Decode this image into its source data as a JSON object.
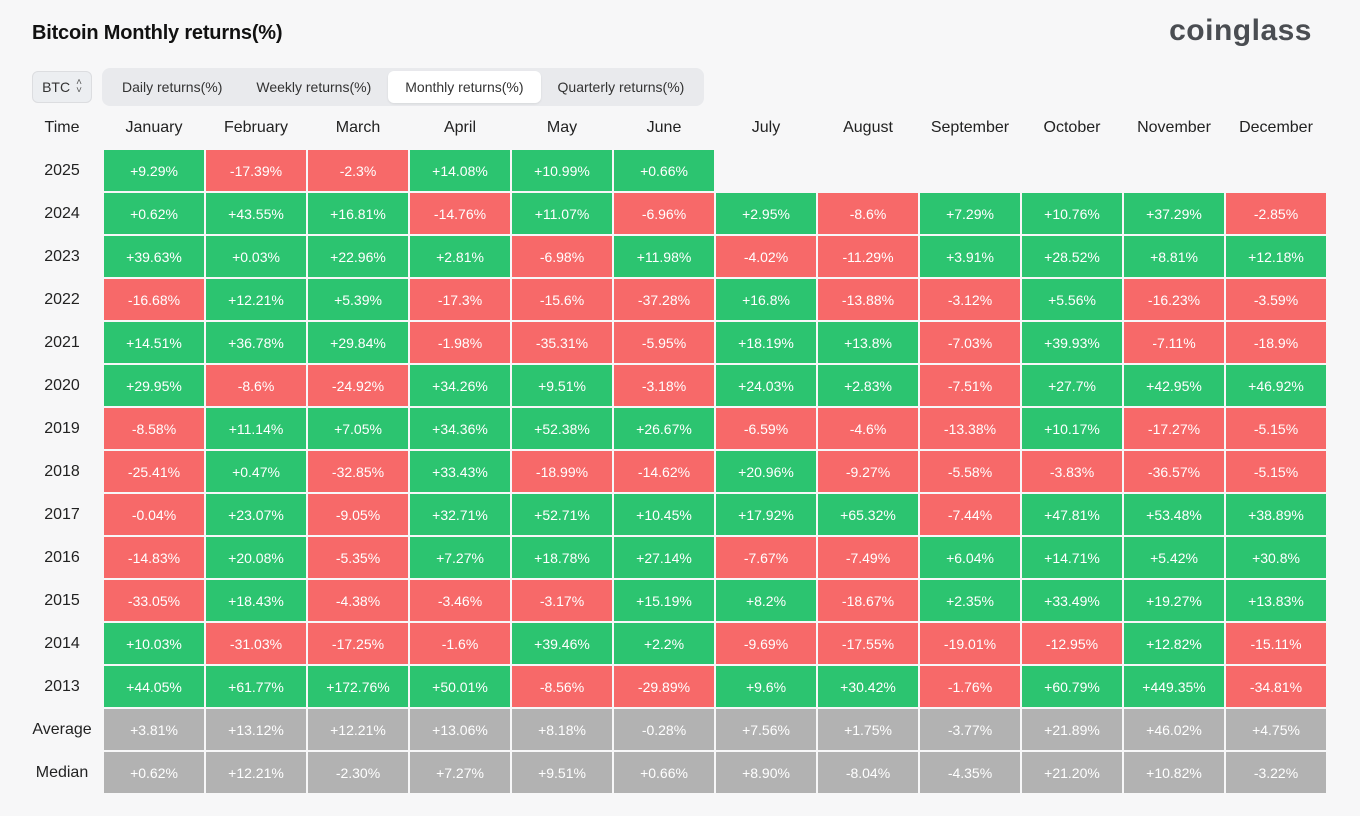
{
  "header": {
    "title": "Bitcoin Monthly returns(%)",
    "logo_text": "coinglass"
  },
  "controls": {
    "asset": "BTC",
    "tabs": [
      "Daily returns(%)",
      "Weekly returns(%)",
      "Monthly returns(%)",
      "Quarterly returns(%)"
    ],
    "active_tab": "Monthly returns(%)"
  },
  "colors": {
    "positive": "#2cc470",
    "negative": "#f76969",
    "summary": "#b2b2b2"
  },
  "table": {
    "corner_label": "Time",
    "months": [
      "January",
      "February",
      "March",
      "April",
      "May",
      "June",
      "July",
      "August",
      "September",
      "October",
      "November",
      "December"
    ],
    "rows": [
      {
        "label": "2025",
        "values": [
          "+9.29%",
          "-17.39%",
          "-2.3%",
          "+14.08%",
          "+10.99%",
          "+0.66%",
          "",
          "",
          "",
          "",
          "",
          ""
        ]
      },
      {
        "label": "2024",
        "values": [
          "+0.62%",
          "+43.55%",
          "+16.81%",
          "-14.76%",
          "+11.07%",
          "-6.96%",
          "+2.95%",
          "-8.6%",
          "+7.29%",
          "+10.76%",
          "+37.29%",
          "-2.85%"
        ]
      },
      {
        "label": "2023",
        "values": [
          "+39.63%",
          "+0.03%",
          "+22.96%",
          "+2.81%",
          "-6.98%",
          "+11.98%",
          "-4.02%",
          "-11.29%",
          "+3.91%",
          "+28.52%",
          "+8.81%",
          "+12.18%"
        ]
      },
      {
        "label": "2022",
        "values": [
          "-16.68%",
          "+12.21%",
          "+5.39%",
          "-17.3%",
          "-15.6%",
          "-37.28%",
          "+16.8%",
          "-13.88%",
          "-3.12%",
          "+5.56%",
          "-16.23%",
          "-3.59%"
        ]
      },
      {
        "label": "2021",
        "values": [
          "+14.51%",
          "+36.78%",
          "+29.84%",
          "-1.98%",
          "-35.31%",
          "-5.95%",
          "+18.19%",
          "+13.8%",
          "-7.03%",
          "+39.93%",
          "-7.11%",
          "-18.9%"
        ]
      },
      {
        "label": "2020",
        "values": [
          "+29.95%",
          "-8.6%",
          "-24.92%",
          "+34.26%",
          "+9.51%",
          "-3.18%",
          "+24.03%",
          "+2.83%",
          "-7.51%",
          "+27.7%",
          "+42.95%",
          "+46.92%"
        ]
      },
      {
        "label": "2019",
        "values": [
          "-8.58%",
          "+11.14%",
          "+7.05%",
          "+34.36%",
          "+52.38%",
          "+26.67%",
          "-6.59%",
          "-4.6%",
          "-13.38%",
          "+10.17%",
          "-17.27%",
          "-5.15%"
        ]
      },
      {
        "label": "2018",
        "values": [
          "-25.41%",
          "+0.47%",
          "-32.85%",
          "+33.43%",
          "-18.99%",
          "-14.62%",
          "+20.96%",
          "-9.27%",
          "-5.58%",
          "-3.83%",
          "-36.57%",
          "-5.15%"
        ]
      },
      {
        "label": "2017",
        "values": [
          "-0.04%",
          "+23.07%",
          "-9.05%",
          "+32.71%",
          "+52.71%",
          "+10.45%",
          "+17.92%",
          "+65.32%",
          "-7.44%",
          "+47.81%",
          "+53.48%",
          "+38.89%"
        ]
      },
      {
        "label": "2016",
        "values": [
          "-14.83%",
          "+20.08%",
          "-5.35%",
          "+7.27%",
          "+18.78%",
          "+27.14%",
          "-7.67%",
          "-7.49%",
          "+6.04%",
          "+14.71%",
          "+5.42%",
          "+30.8%"
        ]
      },
      {
        "label": "2015",
        "values": [
          "-33.05%",
          "+18.43%",
          "-4.38%",
          "-3.46%",
          "-3.17%",
          "+15.19%",
          "+8.2%",
          "-18.67%",
          "+2.35%",
          "+33.49%",
          "+19.27%",
          "+13.83%"
        ]
      },
      {
        "label": "2014",
        "values": [
          "+10.03%",
          "-31.03%",
          "-17.25%",
          "-1.6%",
          "+39.46%",
          "+2.2%",
          "-9.69%",
          "-17.55%",
          "-19.01%",
          "-12.95%",
          "+12.82%",
          "-15.11%"
        ]
      },
      {
        "label": "2013",
        "values": [
          "+44.05%",
          "+61.77%",
          "+172.76%",
          "+50.01%",
          "-8.56%",
          "-29.89%",
          "+9.6%",
          "+30.42%",
          "-1.76%",
          "+60.79%",
          "+449.35%",
          "-34.81%"
        ]
      }
    ],
    "summary_rows": [
      {
        "label": "Average",
        "values": [
          "+3.81%",
          "+13.12%",
          "+12.21%",
          "+13.06%",
          "+8.18%",
          "-0.28%",
          "+7.56%",
          "+1.75%",
          "-3.77%",
          "+21.89%",
          "+46.02%",
          "+4.75%"
        ]
      },
      {
        "label": "Median",
        "values": [
          "+0.62%",
          "+12.21%",
          "-2.30%",
          "+7.27%",
          "+9.51%",
          "+0.66%",
          "+8.90%",
          "-8.04%",
          "-4.35%",
          "+21.20%",
          "+10.82%",
          "-3.22%"
        ]
      }
    ]
  }
}
